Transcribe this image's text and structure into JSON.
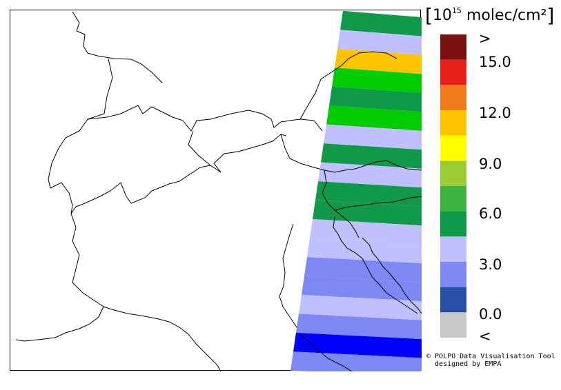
{
  "map": {
    "unit_prefix": "10",
    "unit_exponent": "15",
    "unit_rest": "molec/cm²"
  },
  "legend": {
    "colors": [
      "#7a1010",
      "#e8201c",
      "#f07c1c",
      "#ffc400",
      "#ffff00",
      "#9ccc33",
      "#3fb33f",
      "#109948",
      "#c0c0ff",
      "#7e88f5",
      "#2a4fa6",
      "#c8c8c8"
    ],
    "tick_labels": [
      ">",
      "15.0",
      "12.0",
      "9.0",
      "6.0",
      "3.0",
      "0.0",
      "<"
    ]
  },
  "swath": {
    "colors": [
      "#109948",
      "#c0c0ff",
      "#ffc400",
      "#00cc00",
      "#109948",
      "#00cc00",
      "#c0c0ff",
      "#109948",
      "#c0c0ff",
      "#109948",
      "#109948",
      "#c0c0ff",
      "#c0c0ff",
      "#7e88f5",
      "#7e88f5",
      "#c0c0ff",
      "#7e88f5",
      "#0000ff",
      "#7e88f5"
    ]
  },
  "credit": {
    "line1": "© POLPO Data Visualisation Tool",
    "line2": "  designed by EMPA"
  }
}
